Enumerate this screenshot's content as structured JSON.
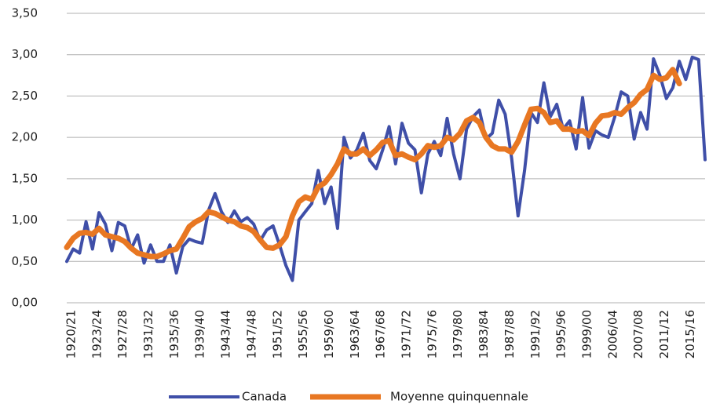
{
  "chart_data": {
    "type": "line",
    "categories": [
      "1920/21",
      null,
      null,
      null,
      "1923/24",
      null,
      null,
      null,
      "1927/28",
      null,
      null,
      null,
      "1931/32",
      null,
      null,
      null,
      "1935/36",
      null,
      null,
      null,
      "1939/40",
      null,
      null,
      null,
      "1943/44",
      null,
      null,
      null,
      "1947/48",
      null,
      null,
      null,
      "1951/52",
      null,
      null,
      null,
      "1955/56",
      null,
      null,
      null,
      "1959/60",
      null,
      null,
      null,
      "1963/64",
      null,
      null,
      null,
      "1967/68",
      null,
      null,
      null,
      "1971/72",
      null,
      null,
      null,
      "1975/76",
      null,
      null,
      null,
      "1979/80",
      null,
      null,
      null,
      "1983/84",
      null,
      null,
      null,
      "1987/88",
      null,
      null,
      null,
      "1991/92",
      null,
      null,
      null,
      "1995/96",
      null,
      null,
      null,
      "1999/00",
      null,
      null,
      null,
      "2006/04",
      null,
      null,
      null,
      "2007/08",
      null,
      null,
      null,
      "2011/12",
      null,
      null,
      null,
      "2015/16",
      null,
      null,
      null
    ],
    "series": [
      {
        "name": "Canada",
        "color": "#3f4fa8",
        "values": [
          0.5,
          0.65,
          0.6,
          0.98,
          0.65,
          1.09,
          0.95,
          0.63,
          0.97,
          0.93,
          0.65,
          0.82,
          0.48,
          0.7,
          0.5,
          0.5,
          0.7,
          0.36,
          0.68,
          0.77,
          0.74,
          0.72,
          1.12,
          1.32,
          1.1,
          0.97,
          1.11,
          0.98,
          1.03,
          0.95,
          0.75,
          0.88,
          0.93,
          0.7,
          0.45,
          0.27,
          1.0,
          1.1,
          1.2,
          1.6,
          1.2,
          1.4,
          0.9,
          2.0,
          1.75,
          1.85,
          2.05,
          1.72,
          1.62,
          1.85,
          2.13,
          1.68,
          2.17,
          1.93,
          1.85,
          1.33,
          1.8,
          1.95,
          1.78,
          2.23,
          1.8,
          1.5,
          2.1,
          2.25,
          2.33,
          1.98,
          2.05,
          2.45,
          2.28,
          1.75,
          1.05,
          1.6,
          2.3,
          2.18,
          2.66,
          2.25,
          2.4,
          2.1,
          2.2,
          1.86,
          2.48,
          1.87,
          2.08,
          2.03,
          2.0,
          2.25,
          2.55,
          2.5,
          1.98,
          2.3,
          2.1,
          2.95,
          2.75,
          2.47,
          2.6,
          2.92,
          2.7,
          2.97,
          2.94,
          1.73
        ]
      },
      {
        "name": "Moyenne quinquennale",
        "color": "#e87722",
        "values": [
          0.67,
          0.78,
          0.84,
          0.85,
          0.83,
          0.9,
          0.82,
          0.8,
          0.78,
          0.74,
          0.66,
          0.6,
          0.58,
          0.56,
          0.56,
          0.59,
          0.63,
          0.65,
          0.78,
          0.92,
          0.98,
          1.02,
          1.1,
          1.08,
          1.04,
          1.0,
          0.98,
          0.93,
          0.91,
          0.86,
          0.76,
          0.67,
          0.66,
          0.7,
          0.8,
          1.05,
          1.22,
          1.28,
          1.25,
          1.4,
          1.45,
          1.55,
          1.68,
          1.86,
          1.8,
          1.8,
          1.86,
          1.78,
          1.85,
          1.94,
          1.96,
          1.78,
          1.8,
          1.76,
          1.73,
          1.8,
          1.9,
          1.88,
          1.9,
          2.0,
          1.97,
          2.05,
          2.2,
          2.24,
          2.18,
          2.0,
          1.9,
          1.86,
          1.86,
          1.82,
          1.95,
          2.15,
          2.34,
          2.35,
          2.3,
          2.18,
          2.2,
          2.1,
          2.1,
          2.07,
          2.08,
          2.02,
          2.17,
          2.26,
          2.27,
          2.3,
          2.28,
          2.36,
          2.42,
          2.52,
          2.58,
          2.75,
          2.7,
          2.72,
          2.82,
          2.65,
          null,
          null,
          null,
          null
        ]
      }
    ],
    "ylim": [
      0,
      3.5
    ],
    "yticks": [
      {
        "value": 0,
        "label": "0,00"
      },
      {
        "value": 0.5,
        "label": "0,50"
      },
      {
        "value": 1,
        "label": "1,00"
      },
      {
        "value": 1.5,
        "label": "1,50"
      },
      {
        "value": 2,
        "label": "2,00"
      },
      {
        "value": 2.5,
        "label": "2,50"
      },
      {
        "value": 3,
        "label": "3,00"
      },
      {
        "value": 3.5,
        "label": "3,50"
      }
    ],
    "grid": true,
    "legend": "bottom"
  }
}
